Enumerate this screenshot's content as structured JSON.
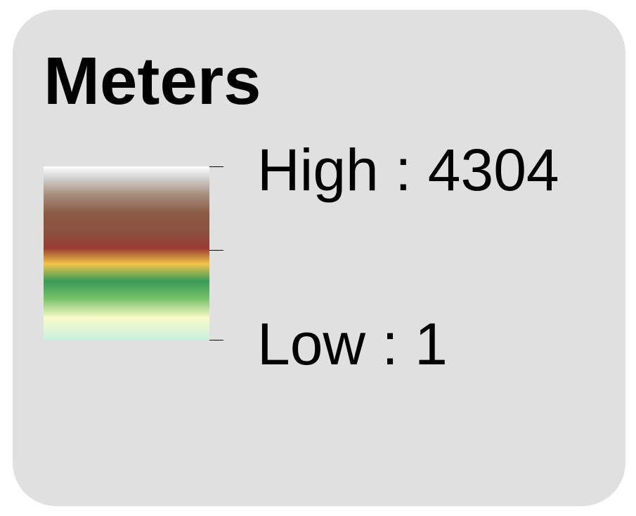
{
  "legend": {
    "title": "Meters",
    "high_label": "High : 4304",
    "low_label": "Low : 1",
    "ramp_stops": [
      {
        "offset": 0.0,
        "color": "#ffffff"
      },
      {
        "offset": 0.06,
        "color": "#d6d6d6"
      },
      {
        "offset": 0.16,
        "color": "#a89080"
      },
      {
        "offset": 0.27,
        "color": "#8c5a44"
      },
      {
        "offset": 0.38,
        "color": "#8c5040"
      },
      {
        "offset": 0.47,
        "color": "#9a3a34"
      },
      {
        "offset": 0.56,
        "color": "#f2c44a"
      },
      {
        "offset": 0.66,
        "color": "#3a9a58"
      },
      {
        "offset": 0.76,
        "color": "#78c26a"
      },
      {
        "offset": 0.87,
        "color": "#fafac8"
      },
      {
        "offset": 1.0,
        "color": "#c8f0e0"
      }
    ]
  }
}
